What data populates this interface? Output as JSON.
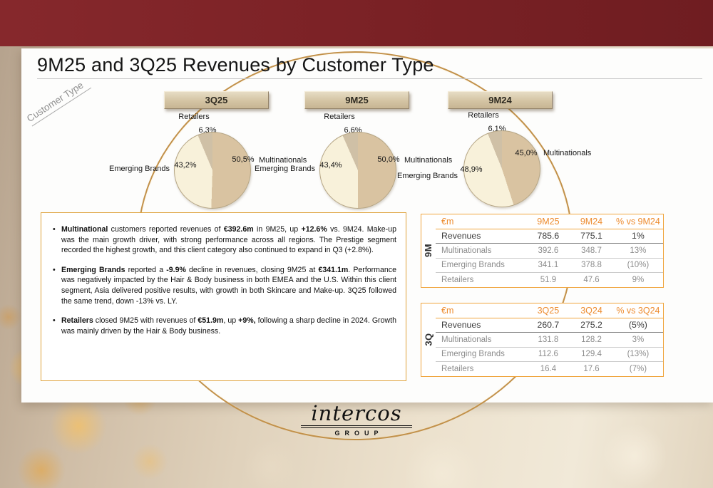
{
  "slide": {
    "title": "9M25 and 3Q25 Revenues by Customer Type",
    "rotated_label": "Customer Type"
  },
  "colors": {
    "top_bar": "#7c2526",
    "accent_orange": "#ed8b2e",
    "table_border": "#f0a640",
    "notes_border": "#dfa33c",
    "ellipse_gold": "#c2914a",
    "pie_multinationals": "#d9c3a1",
    "pie_emerging": "#f8f1da",
    "pie_retailers": "#cfc0a6"
  },
  "chart_data": [
    {
      "type": "pie",
      "title": "3Q25",
      "labels": [
        "Multinationals",
        "Emerging Brands",
        "Retailers"
      ],
      "values": [
        50.5,
        43.2,
        6.3
      ],
      "pct_labels": [
        "50,5%",
        "43,2%",
        "6,3%"
      ],
      "unit": "%"
    },
    {
      "type": "pie",
      "title": "9M25",
      "labels": [
        "Multinationals",
        "Emerging Brands",
        "Retailers"
      ],
      "values": [
        50.0,
        43.4,
        6.6
      ],
      "pct_labels": [
        "50,0%",
        "43,4%",
        "6,6%"
      ],
      "unit": "%"
    },
    {
      "type": "pie",
      "title": "9M24",
      "labels": [
        "Multinationals",
        "Emerging Brands",
        "Retailers"
      ],
      "values": [
        45.0,
        48.9,
        6.1
      ],
      "pct_labels": [
        "45,0%",
        "48,9%",
        "6,1%"
      ],
      "unit": "%"
    },
    {
      "type": "table",
      "side_label": "9M",
      "columns": [
        "€m",
        "9M25",
        "9M24",
        "% vs 9M24"
      ],
      "rows": [
        [
          "Revenues",
          "785.6",
          "775.1",
          "1%"
        ],
        [
          "Multinationals",
          "392.6",
          "348.7",
          "13%"
        ],
        [
          "Emerging Brands",
          "341.1",
          "378.8",
          "(10%)"
        ],
        [
          "Retailers",
          "51.9",
          "47.6",
          "9%"
        ]
      ]
    },
    {
      "type": "table",
      "side_label": "3Q",
      "columns": [
        "€m",
        "3Q25",
        "3Q24",
        "% vs 3Q24"
      ],
      "rows": [
        [
          "Revenues",
          "260.7",
          "275.2",
          "(5%)"
        ],
        [
          "Multinationals",
          "131.8",
          "128.2",
          "3%"
        ],
        [
          "Emerging Brands",
          "112.6",
          "129.4",
          "(13%)"
        ],
        [
          "Retailers",
          "16.4",
          "17.6",
          "(7%)"
        ]
      ]
    }
  ],
  "notes": {
    "bullets": [
      "**Multinational** customers reported revenues of **€392.6m** in 9M25, up **+12.6%** vs. 9M24. Make-up was the main growth driver, with strong performance across all regions. The Prestige segment recorded the highest growth, and this client category also continued to expand in Q3 (+2.8%).",
      "**Emerging Brands** reported a **-9.9%** decline in revenues, closing 9M25 at **€341.1m**. Performance was negatively impacted by the Hair & Body business in both EMEA and the U.S. Within this client segment, Asia delivered positive results, with growth in both Skincare and Make-up. 3Q25 followed the same trend, down -13% vs. LY.",
      "**Retailers** closed 9M25 with revenues of **€51.9m**, up **+9%,** following a sharp decline in 2024. Growth was mainly driven by the Hair & Body business."
    ]
  },
  "logo": {
    "wordmark": "intercos",
    "subtext": "GROUP"
  }
}
